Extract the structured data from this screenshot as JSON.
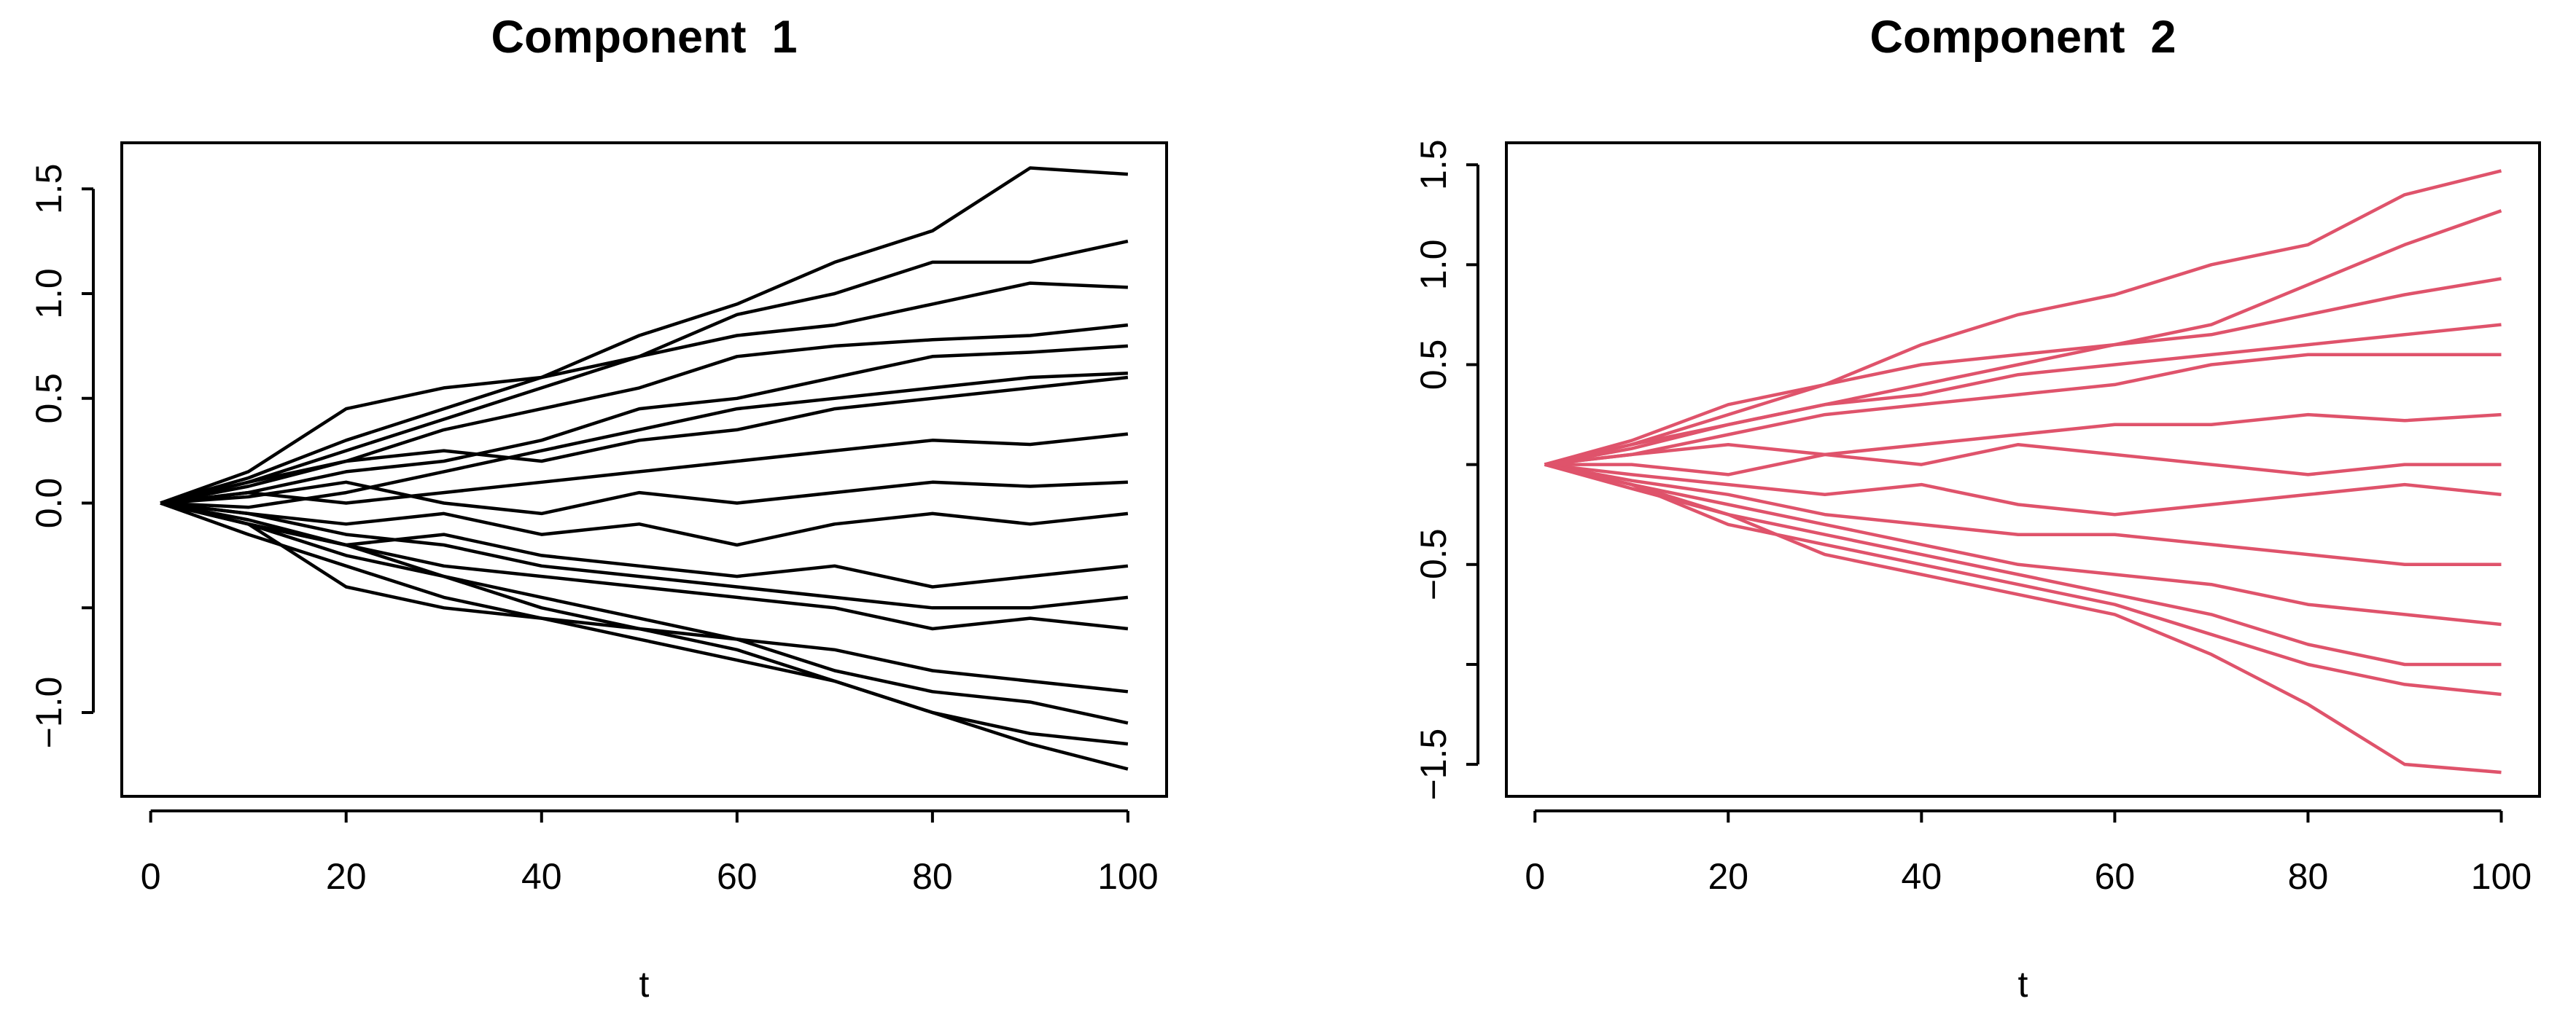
{
  "chart_data": [
    {
      "type": "line",
      "title": "Component  1",
      "xlabel": "t",
      "color": "#000000",
      "x": [
        1,
        10,
        20,
        30,
        40,
        50,
        60,
        70,
        80,
        90,
        100
      ],
      "series": [
        {
          "values": [
            0,
            0.12,
            0.3,
            0.45,
            0.6,
            0.8,
            0.95,
            1.15,
            1.3,
            1.6,
            1.57
          ]
        },
        {
          "values": [
            0,
            0.1,
            0.25,
            0.4,
            0.55,
            0.7,
            0.9,
            1.0,
            1.15,
            1.15,
            1.25
          ]
        },
        {
          "values": [
            0,
            0.15,
            0.45,
            0.55,
            0.6,
            0.7,
            0.8,
            0.85,
            0.95,
            1.05,
            1.03
          ]
        },
        {
          "values": [
            0,
            0.08,
            0.2,
            0.35,
            0.45,
            0.55,
            0.7,
            0.75,
            0.78,
            0.8,
            0.85
          ]
        },
        {
          "values": [
            0,
            0.05,
            0.15,
            0.2,
            0.3,
            0.45,
            0.5,
            0.6,
            0.7,
            0.72,
            0.75
          ]
        },
        {
          "values": [
            0,
            -0.02,
            0.05,
            0.15,
            0.25,
            0.35,
            0.45,
            0.5,
            0.55,
            0.6,
            0.62
          ]
        },
        {
          "values": [
            0,
            0.1,
            0.2,
            0.25,
            0.2,
            0.3,
            0.35,
            0.45,
            0.5,
            0.55,
            0.6
          ]
        },
        {
          "values": [
            0,
            0.05,
            0.0,
            0.05,
            0.1,
            0.15,
            0.2,
            0.25,
            0.3,
            0.28,
            0.33
          ]
        },
        {
          "values": [
            0,
            0.03,
            0.1,
            0.0,
            -0.05,
            0.05,
            0.0,
            0.05,
            0.1,
            0.08,
            0.1
          ]
        },
        {
          "values": [
            0,
            -0.05,
            -0.1,
            -0.05,
            -0.15,
            -0.1,
            -0.2,
            -0.1,
            -0.05,
            -0.1,
            -0.05
          ]
        },
        {
          "values": [
            0,
            -0.08,
            -0.2,
            -0.15,
            -0.25,
            -0.3,
            -0.35,
            -0.3,
            -0.4,
            -0.35,
            -0.3
          ]
        },
        {
          "values": [
            0,
            -0.05,
            -0.15,
            -0.2,
            -0.3,
            -0.35,
            -0.4,
            -0.45,
            -0.5,
            -0.5,
            -0.45
          ]
        },
        {
          "values": [
            0,
            -0.1,
            -0.2,
            -0.3,
            -0.35,
            -0.4,
            -0.45,
            -0.5,
            -0.6,
            -0.55,
            -0.6
          ]
        },
        {
          "values": [
            0,
            -0.1,
            -0.4,
            -0.5,
            -0.55,
            -0.6,
            -0.65,
            -0.7,
            -0.8,
            -0.85,
            -0.9
          ]
        },
        {
          "values": [
            0,
            -0.1,
            -0.25,
            -0.35,
            -0.45,
            -0.55,
            -0.65,
            -0.8,
            -0.9,
            -0.95,
            -1.05
          ]
        },
        {
          "values": [
            0,
            -0.15,
            -0.3,
            -0.45,
            -0.55,
            -0.65,
            -0.75,
            -0.85,
            -1.0,
            -1.1,
            -1.15
          ]
        },
        {
          "values": [
            0,
            -0.1,
            -0.2,
            -0.35,
            -0.5,
            -0.6,
            -0.7,
            -0.85,
            -1.0,
            -1.15,
            -1.27
          ]
        }
      ],
      "xlim": [
        -2.96,
        103.96
      ],
      "ylim": [
        -1.4,
        1.72
      ],
      "xticks": [
        0,
        20,
        40,
        60,
        80,
        100
      ],
      "yticks": [
        {
          "value": -1,
          "label": "−1.0"
        },
        {
          "value": -0.5,
          "label": null
        },
        {
          "value": 0,
          "label": "0.0"
        },
        0.5,
        {
          "value": 1,
          "label": "1.0"
        },
        1.5
      ]
    },
    {
      "type": "line",
      "title": "Component  2",
      "xlabel": "t",
      "color": "#df536b",
      "x": [
        1,
        10,
        20,
        30,
        40,
        50,
        60,
        70,
        80,
        90,
        100
      ],
      "series": [
        {
          "values": [
            0,
            0.1,
            0.25,
            0.4,
            0.6,
            0.75,
            0.85,
            1.0,
            1.1,
            1.35,
            1.47
          ]
        },
        {
          "values": [
            0,
            0.08,
            0.2,
            0.3,
            0.4,
            0.5,
            0.6,
            0.7,
            0.9,
            1.1,
            1.27
          ]
        },
        {
          "values": [
            0,
            0.12,
            0.3,
            0.4,
            0.5,
            0.55,
            0.6,
            0.65,
            0.75,
            0.85,
            0.93
          ]
        },
        {
          "values": [
            0,
            0.1,
            0.2,
            0.3,
            0.35,
            0.45,
            0.5,
            0.55,
            0.6,
            0.65,
            0.7
          ]
        },
        {
          "values": [
            0,
            0.05,
            0.15,
            0.25,
            0.3,
            0.35,
            0.4,
            0.5,
            0.55,
            0.55,
            0.55
          ]
        },
        {
          "values": [
            0,
            0.05,
            0.1,
            0.05,
            0.1,
            0.15,
            0.2,
            0.2,
            0.25,
            0.22,
            0.25
          ]
        },
        {
          "values": [
            0,
            0.0,
            -0.05,
            0.05,
            0.0,
            0.1,
            0.05,
            0.0,
            -0.05,
            0.0,
            0.0
          ]
        },
        {
          "values": [
            0,
            -0.05,
            -0.1,
            -0.15,
            -0.1,
            -0.2,
            -0.25,
            -0.2,
            -0.15,
            -0.1,
            -0.15
          ]
        },
        {
          "values": [
            0,
            -0.08,
            -0.15,
            -0.25,
            -0.3,
            -0.35,
            -0.35,
            -0.4,
            -0.45,
            -0.5,
            -0.5
          ]
        },
        {
          "values": [
            0,
            -0.1,
            -0.2,
            -0.3,
            -0.4,
            -0.5,
            -0.55,
            -0.6,
            -0.7,
            -0.75,
            -0.8
          ]
        },
        {
          "values": [
            0,
            -0.12,
            -0.25,
            -0.35,
            -0.45,
            -0.55,
            -0.65,
            -0.75,
            -0.9,
            -1.0,
            -1.0
          ]
        },
        {
          "values": [
            0,
            -0.1,
            -0.3,
            -0.4,
            -0.5,
            -0.6,
            -0.7,
            -0.85,
            -1.0,
            -1.1,
            -1.15
          ]
        },
        {
          "values": [
            0,
            -0.1,
            -0.25,
            -0.45,
            -0.55,
            -0.65,
            -0.75,
            -0.95,
            -1.2,
            -1.5,
            -1.54
          ]
        }
      ],
      "xlim": [
        -2.96,
        103.96
      ],
      "ylim": [
        -1.66,
        1.61
      ],
      "xticks": [
        0,
        20,
        40,
        60,
        80,
        100
      ],
      "yticks": [
        {
          "value": -1.5,
          "label": "−1.5"
        },
        {
          "value": -1,
          "label": null
        },
        {
          "value": -0.5,
          "label": "−0.5"
        },
        {
          "value": 0,
          "label": null
        },
        0.5,
        {
          "value": 1,
          "label": "1.0"
        },
        1.5
      ]
    }
  ]
}
